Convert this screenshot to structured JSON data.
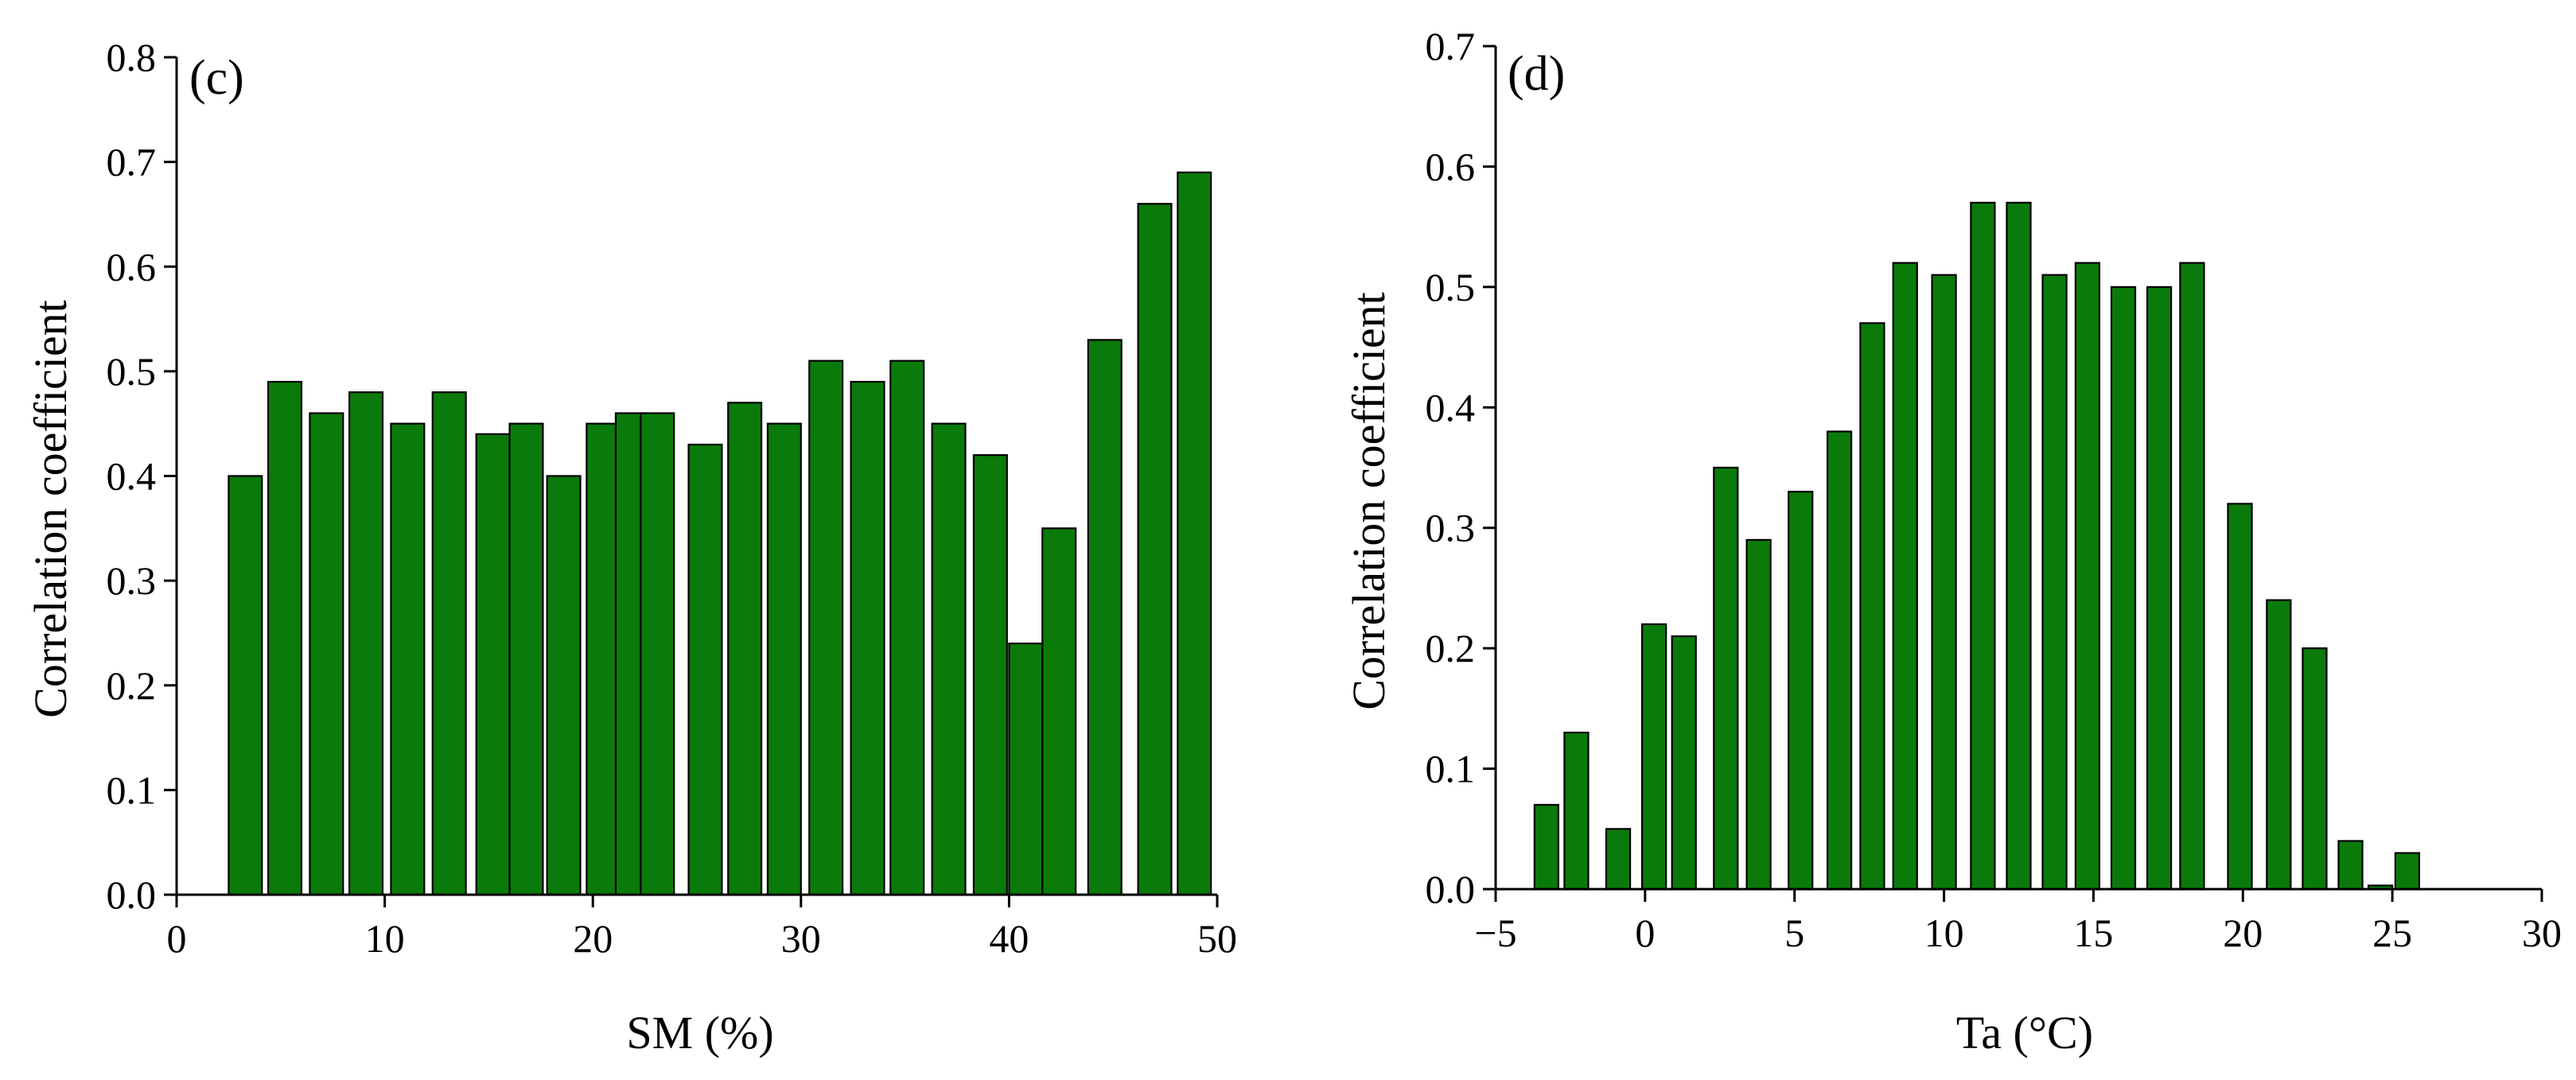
{
  "colors": {
    "bar_fill": "#0a7a0a",
    "bar_stroke": "#000000",
    "axis": "#000000"
  },
  "chart_data": [
    {
      "type": "bar",
      "panel_label": "(c)",
      "xlabel": "SM (%)",
      "ylabel": "Correlation coefficient",
      "xlim": [
        0,
        50
      ],
      "ylim": [
        0,
        0.8
      ],
      "xticks": [
        0,
        10,
        20,
        30,
        40,
        50
      ],
      "xtick_labels": [
        "0",
        "10",
        "20",
        "30",
        "40",
        "50"
      ],
      "yticks": [
        0.0,
        0.1,
        0.2,
        0.3,
        0.4,
        0.5,
        0.6,
        0.7,
        0.8
      ],
      "ytick_labels": [
        "0.0",
        "0.1",
        "0.2",
        "0.3",
        "0.4",
        "0.5",
        "0.6",
        "0.7",
        "0.8"
      ],
      "bar_width": 1.6,
      "x": [
        3.3,
        5.2,
        7.2,
        9.1,
        11.1,
        13.1,
        15.2,
        16.8,
        18.6,
        20.5,
        21.9,
        23.1,
        25.4,
        27.3,
        29.2,
        31.2,
        33.2,
        35.1,
        37.1,
        39.1,
        40.8,
        42.4,
        44.6,
        47.0,
        48.9
      ],
      "values": [
        0.4,
        0.49,
        0.46,
        0.48,
        0.45,
        0.48,
        0.44,
        0.45,
        0.4,
        0.45,
        0.46,
        0.46,
        0.43,
        0.47,
        0.45,
        0.51,
        0.49,
        0.51,
        0.45,
        0.42,
        0.24,
        0.35,
        0.53,
        0.66,
        0.69
      ],
      "grid": false
    },
    {
      "type": "bar",
      "panel_label": "(d)",
      "xlabel": "Ta (°C)",
      "ylabel": "Correlation coefficient",
      "xlim": [
        -5,
        30
      ],
      "ylim": [
        0,
        0.7
      ],
      "xticks": [
        -5,
        0,
        5,
        10,
        15,
        20,
        25,
        30
      ],
      "xtick_labels": [
        "−5",
        "0",
        "5",
        "10",
        "15",
        "20",
        "25",
        "30"
      ],
      "yticks": [
        0.0,
        0.1,
        0.2,
        0.3,
        0.4,
        0.5,
        0.6,
        0.7
      ],
      "ytick_labels": [
        "0.0",
        "0.1",
        "0.2",
        "0.3",
        "0.4",
        "0.5",
        "0.6",
        "0.7"
      ],
      "bar_width": 0.8,
      "x": [
        -3.3,
        -2.3,
        -0.9,
        0.3,
        1.3,
        2.7,
        3.8,
        5.2,
        6.5,
        7.6,
        8.7,
        10.0,
        11.3,
        12.5,
        13.7,
        14.8,
        16.0,
        17.2,
        18.3,
        19.9,
        21.2,
        22.4,
        23.6,
        24.6,
        25.5
      ],
      "values": [
        0.07,
        0.13,
        0.05,
        0.22,
        0.21,
        0.35,
        0.29,
        0.33,
        0.38,
        0.47,
        0.52,
        0.51,
        0.57,
        0.57,
        0.51,
        0.52,
        0.5,
        0.5,
        0.52,
        0.32,
        0.24,
        0.2,
        0.04,
        0.003,
        0.03
      ],
      "grid": false
    }
  ]
}
